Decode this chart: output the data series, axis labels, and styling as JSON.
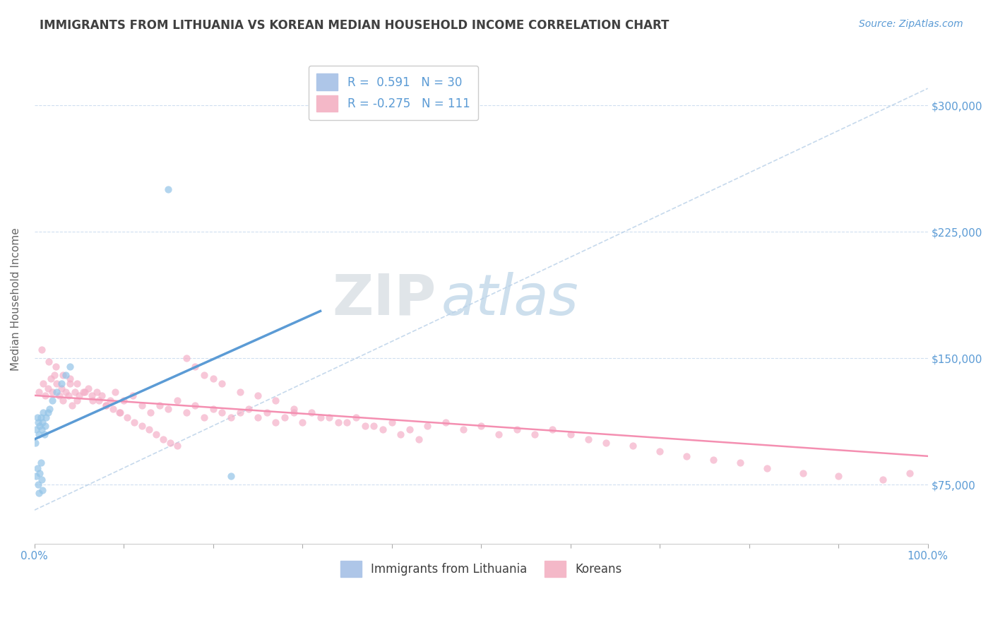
{
  "title": "IMMIGRANTS FROM LITHUANIA VS KOREAN MEDIAN HOUSEHOLD INCOME CORRELATION CHART",
  "source_text": "Source: ZipAtlas.com",
  "ylabel": "Median Household Income",
  "watermark_zip": "ZIP",
  "watermark_atlas": "atlas",
  "xlim": [
    0.0,
    1.0
  ],
  "ylim": [
    40000,
    330000
  ],
  "yticks": [
    75000,
    150000,
    225000,
    300000
  ],
  "ytick_labels": [
    "$75,000",
    "$150,000",
    "$225,000",
    "$300,000"
  ],
  "xtick_labels_ends": [
    "0.0%",
    "100.0%"
  ],
  "blue_color": "#5b9bd5",
  "pink_color": "#f48fb1",
  "blue_scatter_color": "#93c4e8",
  "pink_scatter_color": "#f4b0c8",
  "title_color": "#404040",
  "axis_label_color": "#666666",
  "tick_color": "#5b9bd5",
  "grid_color": "#d0dff0",
  "background_color": "#ffffff",
  "lithuania_scatter_x": [
    0.001,
    0.002,
    0.003,
    0.004,
    0.005,
    0.006,
    0.007,
    0.008,
    0.009,
    0.01,
    0.011,
    0.012,
    0.013,
    0.015,
    0.017,
    0.02,
    0.025,
    0.03,
    0.035,
    0.04,
    0.002,
    0.003,
    0.004,
    0.005,
    0.006,
    0.007,
    0.008,
    0.009,
    0.15,
    0.22
  ],
  "lithuania_scatter_y": [
    100000,
    108000,
    115000,
    112000,
    105000,
    110000,
    115000,
    108000,
    112000,
    118000,
    105000,
    110000,
    115000,
    118000,
    120000,
    125000,
    130000,
    135000,
    140000,
    145000,
    80000,
    85000,
    75000,
    70000,
    82000,
    88000,
    78000,
    72000,
    250000,
    80000
  ],
  "korean_scatter_x": [
    0.005,
    0.01,
    0.012,
    0.015,
    0.018,
    0.02,
    0.022,
    0.025,
    0.028,
    0.03,
    0.032,
    0.035,
    0.038,
    0.04,
    0.042,
    0.045,
    0.048,
    0.05,
    0.055,
    0.06,
    0.065,
    0.07,
    0.075,
    0.08,
    0.085,
    0.09,
    0.095,
    0.1,
    0.11,
    0.12,
    0.13,
    0.14,
    0.15,
    0.16,
    0.17,
    0.18,
    0.19,
    0.2,
    0.21,
    0.22,
    0.23,
    0.24,
    0.25,
    0.26,
    0.27,
    0.28,
    0.29,
    0.3,
    0.32,
    0.34,
    0.36,
    0.38,
    0.4,
    0.42,
    0.44,
    0.46,
    0.48,
    0.5,
    0.52,
    0.54,
    0.56,
    0.58,
    0.6,
    0.62,
    0.64,
    0.67,
    0.7,
    0.73,
    0.76,
    0.79,
    0.82,
    0.86,
    0.9,
    0.95,
    0.98,
    0.008,
    0.016,
    0.024,
    0.032,
    0.04,
    0.048,
    0.056,
    0.064,
    0.072,
    0.08,
    0.088,
    0.096,
    0.104,
    0.112,
    0.12,
    0.128,
    0.136,
    0.144,
    0.152,
    0.16,
    0.17,
    0.18,
    0.19,
    0.2,
    0.21,
    0.23,
    0.25,
    0.27,
    0.29,
    0.31,
    0.33,
    0.35,
    0.37,
    0.39,
    0.41,
    0.43
  ],
  "korean_scatter_y": [
    130000,
    135000,
    128000,
    132000,
    138000,
    130000,
    140000,
    135000,
    128000,
    132000,
    125000,
    130000,
    128000,
    135000,
    122000,
    130000,
    125000,
    128000,
    130000,
    132000,
    125000,
    130000,
    128000,
    122000,
    125000,
    130000,
    118000,
    125000,
    128000,
    122000,
    118000,
    122000,
    120000,
    125000,
    118000,
    122000,
    115000,
    120000,
    118000,
    115000,
    118000,
    120000,
    115000,
    118000,
    112000,
    115000,
    118000,
    112000,
    115000,
    112000,
    115000,
    110000,
    112000,
    108000,
    110000,
    112000,
    108000,
    110000,
    105000,
    108000,
    105000,
    108000,
    105000,
    102000,
    100000,
    98000,
    95000,
    92000,
    90000,
    88000,
    85000,
    82000,
    80000,
    78000,
    82000,
    155000,
    148000,
    145000,
    140000,
    138000,
    135000,
    130000,
    128000,
    125000,
    122000,
    120000,
    118000,
    115000,
    112000,
    110000,
    108000,
    105000,
    102000,
    100000,
    98000,
    150000,
    145000,
    140000,
    138000,
    135000,
    130000,
    128000,
    125000,
    120000,
    118000,
    115000,
    112000,
    110000,
    108000,
    105000,
    102000
  ],
  "lithuania_line_x": [
    0.0,
    0.32
  ],
  "lithuania_line_y": [
    102000,
    178000
  ],
  "korean_line_x": [
    0.0,
    1.0
  ],
  "korean_line_y": [
    128000,
    92000
  ],
  "ref_line_x": [
    0.0,
    1.0
  ],
  "ref_line_y": [
    60000,
    310000
  ]
}
